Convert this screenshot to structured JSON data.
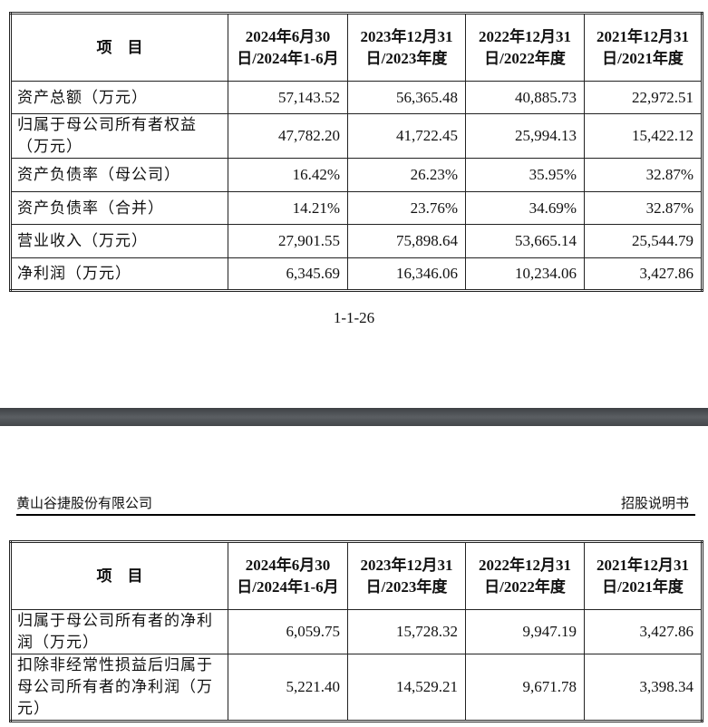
{
  "columns": {
    "item": "项　目",
    "periods": [
      "2024年6月30日/2024年1-6月",
      "2023年12月31日/2023年度",
      "2022年12月31日/2022年度",
      "2021年12月31日/2021年度"
    ]
  },
  "table1": {
    "rows": [
      {
        "label": "资产总额（万元）",
        "values": [
          "57,143.52",
          "56,365.48",
          "40,885.73",
          "22,972.51"
        ]
      },
      {
        "label": "归属于母公司所有者权益（万元）",
        "values": [
          "47,782.20",
          "41,722.45",
          "25,994.13",
          "15,422.12"
        ]
      },
      {
        "label": "资产负债率（母公司）",
        "values": [
          "16.42%",
          "26.23%",
          "35.95%",
          "32.87%"
        ]
      },
      {
        "label": "资产负债率（合并）",
        "values": [
          "14.21%",
          "23.76%",
          "34.69%",
          "32.87%"
        ]
      },
      {
        "label": "营业收入（万元）",
        "values": [
          "27,901.55",
          "75,898.64",
          "53,665.14",
          "25,544.79"
        ]
      },
      {
        "label": "净利润（万元）",
        "values": [
          "6,345.69",
          "16,346.06",
          "10,234.06",
          "3,427.86"
        ]
      }
    ]
  },
  "page_number": "1-1-26",
  "page_header": {
    "company": "黄山谷捷股份有限公司",
    "doc_type": "招股说明书"
  },
  "table2": {
    "rows": [
      {
        "label": "归属于母公司所有者的净利润（万元）",
        "values": [
          "6,059.75",
          "15,728.32",
          "9,947.19",
          "3,427.86"
        ]
      },
      {
        "label": "扣除非经常性损益后归属于母公司所有者的净利润（万元）",
        "values": [
          "5,221.40",
          "14,529.21",
          "9,671.78",
          "3,398.34"
        ]
      }
    ]
  }
}
